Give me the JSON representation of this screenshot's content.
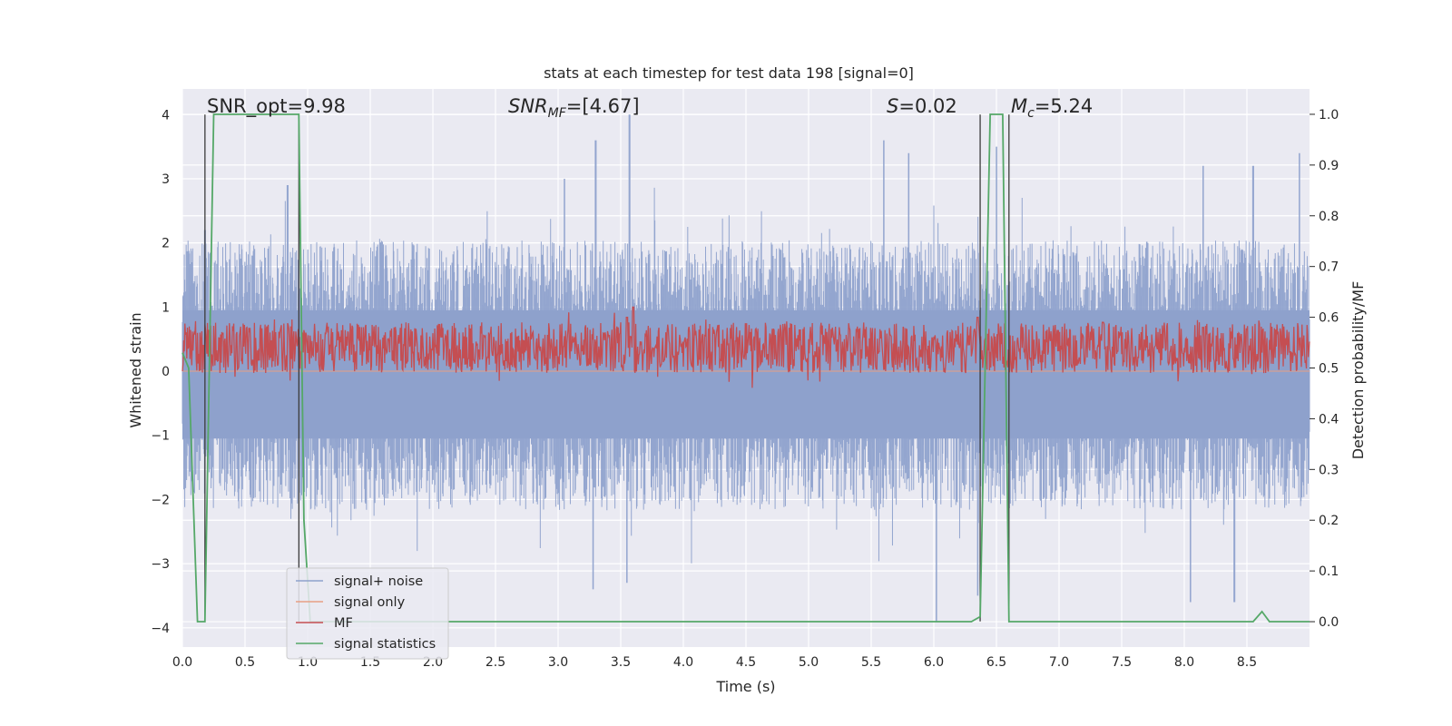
{
  "chart_data": {
    "type": "line",
    "title": "stats at each timestep for test data 198 [signal=0]",
    "xlabel": "Time (s)",
    "ylabel": "Whitened strain",
    "y2label": "Detection probability/MF",
    "xlim": [
      0,
      9.0
    ],
    "ylim": [
      -4.3,
      4.4
    ],
    "y2lim": [
      -0.05,
      1.05
    ],
    "xticks": [
      "0.0",
      "0.5",
      "1.0",
      "1.5",
      "2.0",
      "2.5",
      "3.0",
      "3.5",
      "4.0",
      "4.5",
      "5.0",
      "5.5",
      "6.0",
      "6.5",
      "7.0",
      "7.5",
      "8.0",
      "8.5"
    ],
    "xtick_values": [
      0,
      0.5,
      1,
      1.5,
      2,
      2.5,
      3,
      3.5,
      4,
      4.5,
      5,
      5.5,
      6,
      6.5,
      7,
      7.5,
      8,
      8.5
    ],
    "yticks": [
      "4",
      "3",
      "2",
      "1",
      "0",
      "−1",
      "−2",
      "−3",
      "−4"
    ],
    "ytick_values": [
      4,
      3,
      2,
      1,
      0,
      -1,
      -2,
      -3,
      -4
    ],
    "y2ticks": [
      "1.0",
      "0.9",
      "0.8",
      "0.7",
      "0.6",
      "0.5",
      "0.4",
      "0.3",
      "0.2",
      "0.1",
      "0.0"
    ],
    "y2tick_values": [
      1.0,
      0.9,
      0.8,
      0.7,
      0.6,
      0.5,
      0.4,
      0.3,
      0.2,
      0.1,
      0.0
    ],
    "annotations": {
      "snr_opt": "SNR_opt=9.98",
      "snr_mf_sym": "SNR",
      "snr_mf_sub": "MF",
      "snr_mf_val": "=[4.67]",
      "s_sym": "S",
      "s_val": "=0.02",
      "mc_sym": "M",
      "mc_sub": "c",
      "mc_val": "=5.24"
    },
    "legend": {
      "position": "lower-left",
      "entries": [
        {
          "label": "signal+ noise",
          "color": "#8ea1cc"
        },
        {
          "label": "signal only",
          "color": "#e89f85"
        },
        {
          "label": "MF",
          "color": "#c44e52"
        },
        {
          "label": "signal statistics",
          "color": "#55a868"
        }
      ]
    },
    "series": [
      {
        "name": "signal+ noise",
        "axis": "left",
        "kind": "noise",
        "upper_peaks": [
          [
            0.18,
            2.2
          ],
          [
            0.84,
            2.9
          ],
          [
            3.05,
            3.0
          ],
          [
            3.3,
            3.6
          ],
          [
            3.57,
            4.0
          ],
          [
            5.6,
            3.6
          ],
          [
            5.8,
            3.4
          ],
          [
            6.5,
            3.5
          ],
          [
            8.15,
            3.2
          ],
          [
            8.55,
            3.2
          ],
          [
            8.92,
            3.4
          ]
        ],
        "lower_peaks": [
          [
            3.28,
            -3.4
          ],
          [
            3.55,
            -3.3
          ],
          [
            6.02,
            -3.9
          ],
          [
            6.35,
            -3.5
          ],
          [
            8.05,
            -3.6
          ],
          [
            8.4,
            -3.6
          ]
        ],
        "typical_upper": 1.7,
        "typical_lower": -1.8
      },
      {
        "name": "signal only",
        "axis": "left",
        "kind": "flat",
        "value": 0
      },
      {
        "name": "MF",
        "axis": "right",
        "kind": "band",
        "mean": 0.54,
        "spread": 0.05,
        "spikes": [
          [
            3.55,
            0.6
          ],
          [
            3.6,
            0.62
          ],
          [
            6.35,
            0.6
          ],
          [
            7.35,
            0.59
          ],
          [
            8.15,
            0.58
          ]
        ]
      },
      {
        "name": "signal statistics",
        "axis": "right",
        "x": [
          0.0,
          0.05,
          0.12,
          0.18,
          0.25,
          0.3,
          0.5,
          0.7,
          0.93,
          0.97,
          1.02,
          1.1,
          1.5,
          2.0,
          3.0,
          4.0,
          5.0,
          6.0,
          6.3,
          6.37,
          6.45,
          6.55,
          6.6,
          6.68,
          6.75,
          7.0,
          8.0,
          8.55,
          8.62,
          8.68,
          9.0
        ],
        "values": [
          0.53,
          0.5,
          0.0,
          0.0,
          1.0,
          1.0,
          1.0,
          1.0,
          1.0,
          0.2,
          0.0,
          0.0,
          0.0,
          0.0,
          0.0,
          0.0,
          0.0,
          0.0,
          0.0,
          0.01,
          1.0,
          1.0,
          0.0,
          0.0,
          0.0,
          0.0,
          0.0,
          0.0,
          0.02,
          0.0,
          0.0
        ]
      }
    ],
    "vlines": [
      0.18,
      0.93,
      6.37,
      6.6
    ],
    "colors": {
      "background": "#eaeaf2",
      "grid": "#ffffff",
      "vline": "#3b3b3b"
    }
  }
}
